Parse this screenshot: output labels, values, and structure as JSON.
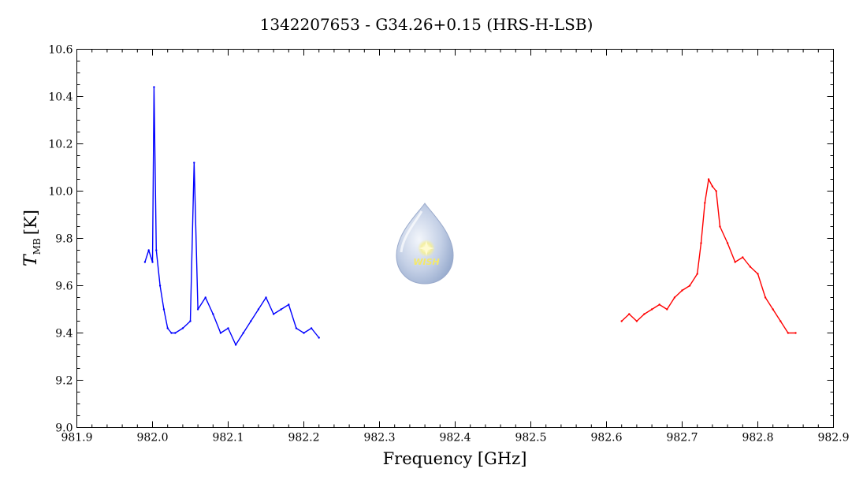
{
  "chart_data": {
    "type": "line",
    "title": "1342207653 - G34.26+0.15 (HRS-H-LSB)",
    "xlabel": "Frequency [GHz]",
    "ylabel": {
      "symbol": "T",
      "subscript": "MB",
      "unit": "[K]"
    },
    "xlim": [
      981.9,
      982.9
    ],
    "ylim": [
      9.0,
      10.6
    ],
    "x_ticks": [
      981.9,
      982.0,
      982.1,
      982.2,
      982.3,
      982.4,
      982.5,
      982.6,
      982.7,
      982.8,
      982.9
    ],
    "x_tick_labels": [
      "981.9",
      "982.0",
      "982.1",
      "982.2",
      "982.3",
      "982.4",
      "982.5",
      "982.6",
      "982.7",
      "982.8",
      "982.9"
    ],
    "y_ticks": [
      9.0,
      9.2,
      9.4,
      9.6,
      9.8,
      10.0,
      10.2,
      10.4,
      10.6
    ],
    "y_tick_labels": [
      "9.0",
      "9.2",
      "9.4",
      "9.6",
      "9.8",
      "10.0",
      "10.2",
      "10.4",
      "10.6"
    ],
    "grid": false,
    "series": [
      {
        "color": "#0000ff",
        "x": [
          981.99,
          981.995,
          982.0,
          982.002,
          982.005,
          982.01,
          982.015,
          982.02,
          982.025,
          982.03,
          982.04,
          982.05,
          982.055,
          982.06,
          982.07,
          982.08,
          982.09,
          982.1,
          982.11,
          982.12,
          982.13,
          982.14,
          982.15,
          982.16,
          982.17,
          982.18,
          982.19,
          982.2,
          982.21,
          982.22
        ],
        "y": [
          9.7,
          9.75,
          9.7,
          10.44,
          9.75,
          9.6,
          9.5,
          9.42,
          9.4,
          9.4,
          9.42,
          9.45,
          10.12,
          9.5,
          9.55,
          9.48,
          9.4,
          9.42,
          9.35,
          9.4,
          9.45,
          9.5,
          9.55,
          9.48,
          9.5,
          9.52,
          9.42,
          9.4,
          9.42,
          9.38
        ]
      },
      {
        "color": "#ff0000",
        "x": [
          982.62,
          982.63,
          982.64,
          982.65,
          982.66,
          982.67,
          982.68,
          982.69,
          982.7,
          982.71,
          982.72,
          982.725,
          982.73,
          982.735,
          982.74,
          982.745,
          982.75,
          982.76,
          982.77,
          982.78,
          982.79,
          982.8,
          982.81,
          982.82,
          982.83,
          982.84,
          982.85
        ],
        "y": [
          9.45,
          9.48,
          9.45,
          9.48,
          9.5,
          9.52,
          9.5,
          9.55,
          9.58,
          9.6,
          9.65,
          9.78,
          9.95,
          10.05,
          10.02,
          10.0,
          9.85,
          9.78,
          9.7,
          9.72,
          9.68,
          9.65,
          9.55,
          9.5,
          9.45,
          9.4,
          9.4
        ]
      }
    ]
  },
  "logo": {
    "text": "WISH",
    "colors": {
      "drop_light": "#e7eef8",
      "drop_dark": "#8fa4c9",
      "star": "#f7f08a"
    }
  }
}
